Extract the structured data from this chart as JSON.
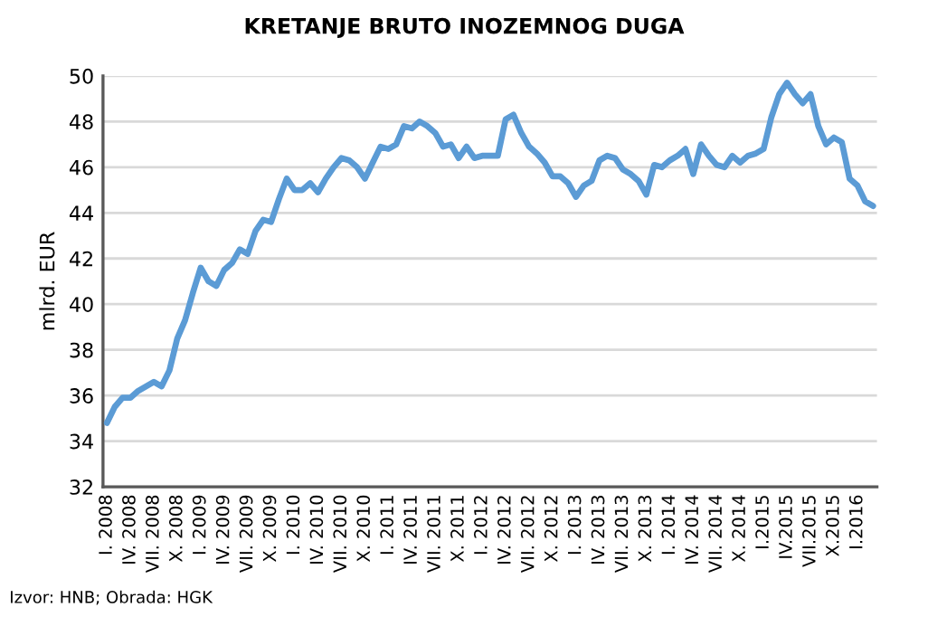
{
  "chart_data": {
    "type": "line",
    "title": "KRETANJE BRUTO INOZEMNOG DUGA",
    "ylabel": "mlrd. EUR",
    "categories": [
      "I. 2008",
      null,
      null,
      "IV. 2008",
      null,
      null,
      "VII. 2008",
      null,
      null,
      "X. 2008",
      null,
      null,
      "I. 2009",
      null,
      null,
      "IV. 2009",
      null,
      null,
      "VII. 2009",
      null,
      null,
      "X. 2009",
      null,
      null,
      "I. 2010",
      null,
      null,
      "IV. 2010",
      null,
      null,
      "VII. 2010",
      null,
      null,
      "X. 2010",
      null,
      null,
      "I. 2011",
      null,
      null,
      "IV. 2011",
      null,
      null,
      "VII. 2011",
      null,
      null,
      "X. 2011",
      null,
      null,
      "I. 2012",
      null,
      null,
      "IV. 2012",
      null,
      null,
      "VII. 2012",
      null,
      null,
      "X. 2012",
      null,
      null,
      "I. 2013",
      null,
      null,
      "IV. 2013",
      null,
      null,
      "VII. 2013",
      null,
      null,
      "X. 2013",
      null,
      null,
      "I. 2014",
      null,
      null,
      "IV. 2014",
      null,
      null,
      "VII. 2014",
      null,
      null,
      "X. 2014",
      null,
      null,
      "I.2015",
      null,
      null,
      "IV.2015",
      null,
      null,
      "VII.2015",
      null,
      null,
      "X.2015",
      null,
      null,
      "I.2016",
      null,
      null
    ],
    "series": [
      {
        "color": "#5b9bd5",
        "values": [
          34.8,
          35.5,
          35.9,
          35.9,
          36.2,
          36.4,
          36.6,
          36.4,
          37.1,
          38.5,
          39.3,
          40.5,
          41.6,
          41.0,
          40.8,
          41.5,
          41.8,
          42.4,
          42.2,
          43.2,
          43.7,
          43.6,
          44.6,
          45.5,
          45.0,
          45.0,
          45.3,
          44.9,
          45.5,
          46.0,
          46.4,
          46.3,
          46.0,
          45.5,
          46.2,
          46.9,
          46.8,
          47.0,
          47.8,
          47.7,
          48.0,
          47.8,
          47.5,
          46.9,
          47.0,
          46.4,
          46.9,
          46.4,
          46.5,
          46.5,
          46.5,
          48.1,
          48.3,
          47.5,
          46.9,
          46.6,
          46.2,
          45.6,
          45.6,
          45.3,
          44.7,
          45.2,
          45.4,
          46.3,
          46.5,
          46.4,
          45.9,
          45.7,
          45.4,
          44.8,
          46.1,
          46.0,
          46.3,
          46.5,
          46.8,
          45.7,
          47.0,
          46.5,
          46.1,
          46.0,
          46.5,
          46.2,
          46.5,
          46.6,
          46.8,
          48.2,
          49.2,
          49.7,
          49.2,
          48.8,
          49.2,
          47.8,
          47.0,
          47.3,
          47.1,
          45.5,
          45.2,
          44.5,
          44.3
        ]
      }
    ],
    "ylim": [
      32,
      50
    ],
    "yticks": [
      32,
      34,
      36,
      38,
      40,
      42,
      44,
      46,
      48,
      50
    ],
    "grid": "y",
    "legend": false,
    "annotations": [
      "Izvor: HNB; Obrada: HGK"
    ]
  }
}
